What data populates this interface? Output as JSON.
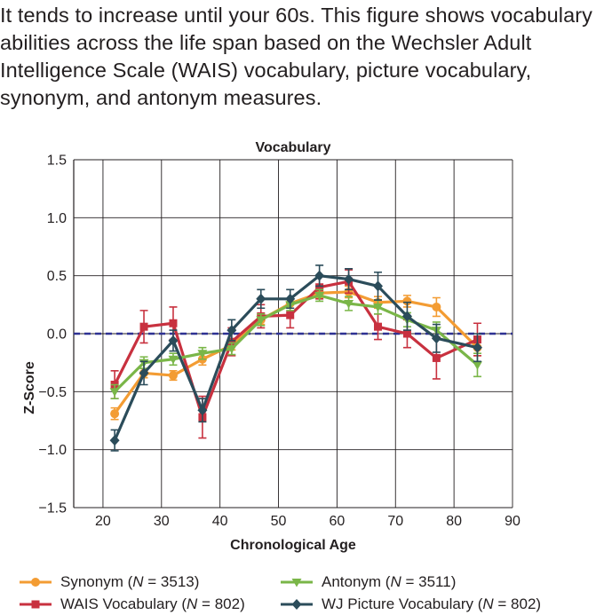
{
  "caption": "It tends to increase until your 60s. This figure shows vocabulary abilities across the life span based on the Wechsler Adult Intelligence Scale (WAIS) vocabulary, picture vocabulary, synonym, and antonym measures.",
  "chart_data": {
    "type": "line",
    "title": "Vocabulary",
    "xlabel": "Chronological Age",
    "ylabel": "Z-Score",
    "xlim": [
      15,
      90
    ],
    "ylim": [
      -1.5,
      1.5
    ],
    "xticks": [
      "20",
      "30",
      "40",
      "50",
      "60",
      "70",
      "80",
      "90"
    ],
    "yticks": [
      "1.5",
      "1.0",
      "0.5",
      "0.0",
      "−0.5",
      "−1.0",
      "−1.5"
    ],
    "grid": true,
    "reference_line": 0.0,
    "legend_position": "bottom",
    "series": [
      {
        "name": "Synonym (N = 3513)",
        "name_prefix": "Synonym (",
        "name_n": "N",
        "name_suffix": " = 3513)",
        "color": "#f39c33",
        "marker": "circle",
        "x": [
          22,
          27,
          32,
          37,
          42,
          47,
          52,
          57,
          62,
          67,
          72,
          77,
          84
        ],
        "y": [
          -0.69,
          -0.34,
          -0.36,
          -0.22,
          -0.1,
          0.12,
          0.26,
          0.35,
          0.36,
          0.27,
          0.28,
          0.23,
          -0.12
        ],
        "err": [
          0.05,
          0.04,
          0.04,
          0.05,
          0.04,
          0.04,
          0.04,
          0.04,
          0.05,
          0.05,
          0.05,
          0.08,
          0.07
        ]
      },
      {
        "name": "WAIS Vocabulary (N = 802)",
        "name_prefix": "WAIS Vocabulary (",
        "name_n": "N",
        "name_suffix": " = 802)",
        "color": "#c8313f",
        "marker": "square",
        "x": [
          22,
          27,
          32,
          37,
          42,
          47,
          52,
          57,
          62,
          67,
          72,
          77,
          84
        ],
        "y": [
          -0.44,
          0.06,
          0.09,
          -0.72,
          -0.07,
          0.15,
          0.16,
          0.4,
          0.45,
          0.06,
          0.0,
          -0.21,
          -0.05
        ],
        "err": [
          0.12,
          0.14,
          0.14,
          0.18,
          0.12,
          0.1,
          0.11,
          0.1,
          0.1,
          0.11,
          0.12,
          0.18,
          0.14
        ]
      },
      {
        "name": "Antonym (N = 3511)",
        "name_prefix": "Antonym (",
        "name_n": "N",
        "name_suffix": " = 3511)",
        "color": "#7ab648",
        "marker": "triangle-down",
        "x": [
          22,
          27,
          32,
          37,
          42,
          47,
          52,
          57,
          62,
          67,
          72,
          77,
          84
        ],
        "y": [
          -0.5,
          -0.25,
          -0.22,
          -0.17,
          -0.13,
          0.12,
          0.25,
          0.33,
          0.26,
          0.23,
          0.12,
          0.03,
          -0.27
        ],
        "err": [
          0.06,
          0.05,
          0.05,
          0.05,
          0.05,
          0.05,
          0.05,
          0.05,
          0.06,
          0.06,
          0.06,
          0.07,
          0.1
        ]
      },
      {
        "name": "WJ Picture Vocabulary (N = 802)",
        "name_prefix": "WJ Picture Vocabulary (",
        "name_n": "N",
        "name_suffix": " = 802)",
        "color": "#2b4c5a",
        "marker": "diamond",
        "x": [
          22,
          27,
          32,
          37,
          42,
          47,
          52,
          57,
          62,
          67,
          72,
          77,
          84
        ],
        "y": [
          -0.92,
          -0.34,
          -0.06,
          -0.66,
          0.03,
          0.3,
          0.3,
          0.5,
          0.47,
          0.41,
          0.15,
          -0.04,
          -0.12
        ],
        "err": [
          0.09,
          0.1,
          0.09,
          0.1,
          0.09,
          0.08,
          0.08,
          0.09,
          0.09,
          0.12,
          0.12,
          0.12,
          0.12
        ]
      }
    ]
  }
}
